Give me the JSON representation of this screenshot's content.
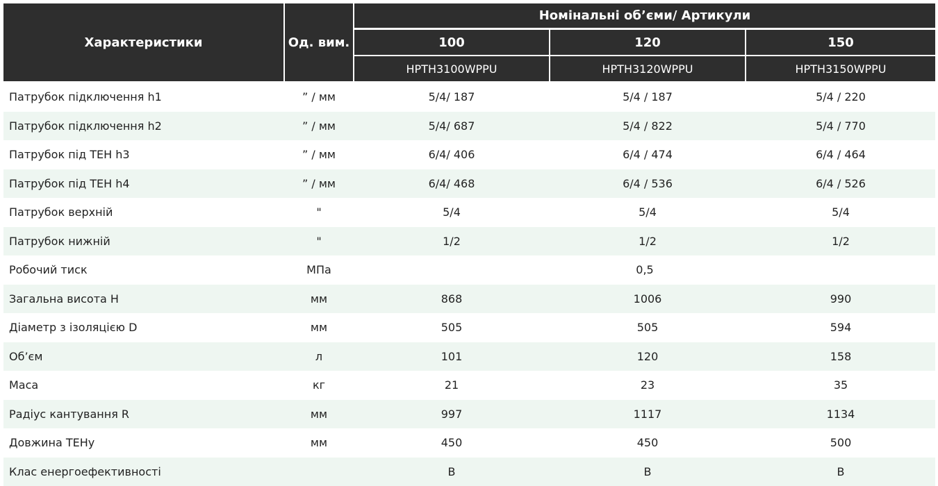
{
  "header": {
    "characteristics": "Характеристики",
    "units": "Од. вим.",
    "nominal": "Номінальні об’єми/ Артикули",
    "volumes": [
      "100",
      "120",
      "150"
    ],
    "articles": [
      "HPTH3100WPPU",
      "HPTH3120WPPU",
      "HPTH3150WPPU"
    ]
  },
  "rows": [
    [
      "Патрубок підключення h1",
      "” / мм",
      "5/4/ 187",
      "5/4 / 187",
      "5/4 / 220"
    ],
    [
      "Патрубок підключення h2",
      "” / мм",
      "5/4/ 687",
      "5/4 / 822",
      "5/4 / 770"
    ],
    [
      "Патрубок під ТЕН h3",
      "” / мм",
      "6/4/ 406",
      "6/4 / 474",
      "6/4 / 464"
    ],
    [
      "Патрубок під ТЕН h4",
      "” / мм",
      "6/4/ 468",
      "6/4 / 536",
      "6/4 / 526"
    ],
    [
      "Патрубок верхній",
      "\"",
      "5/4",
      "5/4",
      "5/4"
    ],
    [
      "Патрубок нижній",
      "\"",
      "1/2",
      "1/2",
      "1/2"
    ],
    [
      "Робочий тиск",
      "МПа",
      "0,5"
    ],
    [
      "Загальна висота H",
      "мм",
      "868",
      "1006",
      "990"
    ],
    [
      "Діаметр з ізоляцією D",
      "мм",
      "505",
      "505",
      "594"
    ],
    [
      "Об’єм",
      "л",
      "101",
      "120",
      "158"
    ],
    [
      "Маса",
      "кг",
      "21",
      "23",
      "35"
    ],
    [
      "Радіус кантування R",
      "мм",
      "997",
      "1117",
      "1134"
    ],
    [
      "Довжина ТЕНу",
      "мм",
      "450",
      "450",
      "500"
    ],
    [
      "Клас енергоефективності",
      "",
      "B",
      "B",
      "B"
    ]
  ]
}
